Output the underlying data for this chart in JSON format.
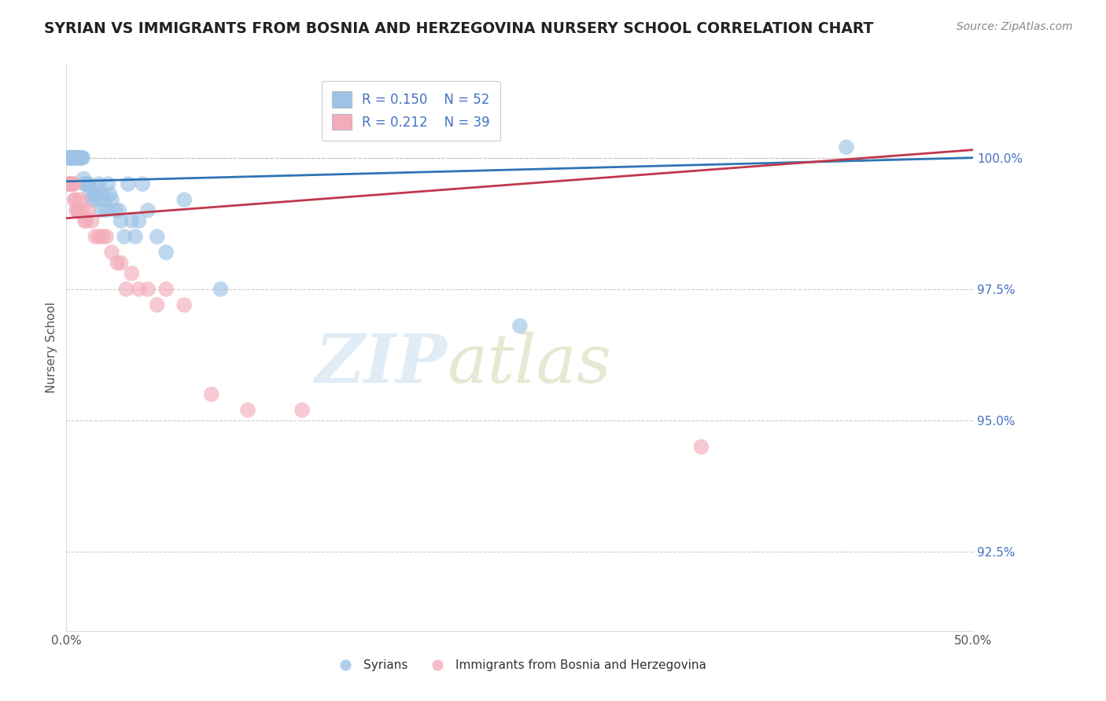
{
  "title": "SYRIAN VS IMMIGRANTS FROM BOSNIA AND HERZEGOVINA NURSERY SCHOOL CORRELATION CHART",
  "source": "Source: ZipAtlas.com",
  "ylabel": "Nursery School",
  "xlim": [
    0.0,
    50.0
  ],
  "ylim": [
    91.0,
    101.8
  ],
  "yticks": [
    92.5,
    95.0,
    97.5,
    100.0
  ],
  "ytick_labels": [
    "92.5%",
    "95.0%",
    "97.5%",
    "100.0%"
  ],
  "xtick_positions": [
    0.0,
    10.0,
    20.0,
    30.0,
    40.0,
    50.0
  ],
  "xtick_labels": [
    "0.0%",
    "",
    "",
    "",
    "",
    "50.0%"
  ],
  "legend_r1": "R = 0.150",
  "legend_n1": "N = 52",
  "legend_r2": "R = 0.212",
  "legend_n2": "N = 39",
  "blue_color": "#9dc3e6",
  "pink_color": "#f4acba",
  "blue_line_color": "#2e74b5",
  "pink_line_color": "#c0384b",
  "blue_line_x0": 0.0,
  "blue_line_y0": 99.55,
  "blue_line_x1": 50.0,
  "blue_line_y1": 100.0,
  "pink_line_x0": 0.0,
  "pink_line_y0": 98.85,
  "pink_line_x1": 50.0,
  "pink_line_y1": 100.15,
  "syrians_x": [
    0.15,
    0.18,
    0.2,
    0.22,
    0.25,
    0.28,
    0.3,
    0.35,
    0.4,
    0.45,
    0.5,
    0.55,
    0.6,
    0.65,
    0.7,
    0.75,
    0.8,
    0.85,
    0.9,
    0.95,
    1.0,
    1.1,
    1.2,
    1.3,
    1.4,
    1.5,
    1.6,
    1.7,
    1.8,
    1.9,
    2.0,
    2.1,
    2.2,
    2.3,
    2.4,
    2.5,
    2.7,
    2.9,
    3.0,
    3.2,
    3.4,
    3.6,
    3.8,
    4.0,
    4.2,
    4.5,
    5.0,
    5.5,
    6.5,
    8.5,
    25.0,
    43.0
  ],
  "syrians_y": [
    100.0,
    100.0,
    100.0,
    100.0,
    100.0,
    100.0,
    100.0,
    100.0,
    100.0,
    100.0,
    100.0,
    100.0,
    100.0,
    100.0,
    100.0,
    100.0,
    100.0,
    100.0,
    100.0,
    99.6,
    99.5,
    99.5,
    99.5,
    99.3,
    99.2,
    99.3,
    99.2,
    99.4,
    99.5,
    99.0,
    99.3,
    99.2,
    99.0,
    99.5,
    99.3,
    99.2,
    99.0,
    99.0,
    98.8,
    98.5,
    99.5,
    98.8,
    98.5,
    98.8,
    99.5,
    99.0,
    98.5,
    98.2,
    99.2,
    97.5,
    96.8,
    100.2
  ],
  "bosnia_x": [
    0.12,
    0.15,
    0.18,
    0.2,
    0.22,
    0.25,
    0.28,
    0.3,
    0.35,
    0.4,
    0.45,
    0.5,
    0.55,
    0.6,
    0.7,
    0.8,
    0.9,
    1.0,
    1.1,
    1.2,
    1.4,
    1.6,
    1.8,
    2.0,
    2.2,
    2.5,
    2.8,
    3.0,
    3.3,
    3.6,
    4.0,
    4.5,
    5.0,
    5.5,
    6.5,
    8.0,
    10.0,
    13.0,
    35.0
  ],
  "bosnia_y": [
    99.5,
    99.5,
    99.5,
    99.5,
    99.5,
    99.5,
    99.5,
    99.5,
    99.5,
    99.5,
    99.2,
    99.2,
    99.0,
    99.0,
    99.0,
    99.2,
    99.0,
    98.8,
    98.8,
    99.0,
    98.8,
    98.5,
    98.5,
    98.5,
    98.5,
    98.2,
    98.0,
    98.0,
    97.5,
    97.8,
    97.5,
    97.5,
    97.2,
    97.5,
    97.2,
    95.5,
    95.2,
    95.2,
    94.5
  ]
}
